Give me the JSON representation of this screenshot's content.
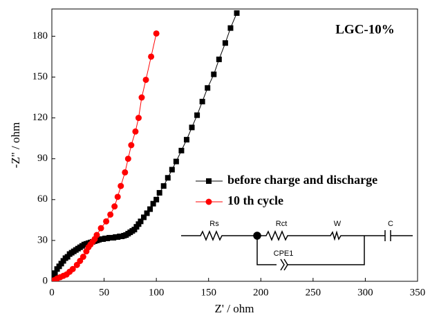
{
  "chart_data": {
    "type": "scatter",
    "annotation": "LGC-10%",
    "xlabel": "Z' / ohm",
    "ylabel": "-Z\" / ohm",
    "xlim": [
      0,
      350
    ],
    "ylim": [
      0,
      200
    ],
    "xticks": [
      0,
      50,
      100,
      150,
      200,
      250,
      300,
      350
    ],
    "yticks": [
      0,
      30,
      60,
      90,
      120,
      150,
      180
    ],
    "legend": "center-right",
    "circuit_labels": [
      "Rs",
      "Rct",
      "W",
      "C",
      "CPE1"
    ],
    "series": [
      {
        "name": "before charge and discharge",
        "color": "#000000",
        "marker": "square",
        "x": [
          1,
          2,
          3,
          5,
          7,
          9,
          11,
          13,
          15,
          17,
          19,
          21,
          23,
          25,
          27,
          29,
          31,
          33,
          35,
          37,
          39,
          41,
          43,
          45,
          47,
          49,
          51,
          53,
          55,
          57,
          59,
          61,
          63,
          65,
          67,
          69,
          71,
          73,
          75,
          77,
          79,
          81,
          83,
          85,
          88,
          91,
          94,
          97,
          100,
          103,
          107,
          111,
          115,
          119,
          124,
          129,
          134,
          139,
          144,
          149,
          155,
          160,
          166,
          171,
          177
        ],
        "values": [
          2,
          4,
          6,
          9,
          11,
          13,
          15,
          17,
          18,
          20,
          21,
          22,
          23,
          24,
          25,
          26,
          27,
          27.5,
          28,
          28.5,
          29,
          29.5,
          30,
          30.5,
          31,
          31,
          31.5,
          31.5,
          32,
          32,
          32,
          32.5,
          32.5,
          33,
          33,
          33.5,
          34,
          35,
          36,
          37,
          38,
          40,
          42,
          44,
          47,
          50,
          53,
          57,
          60,
          65,
          70,
          76,
          82,
          88,
          96,
          104,
          113,
          122,
          132,
          142,
          152,
          163,
          175,
          186,
          197
        ]
      },
      {
        "name": "10 th cycle",
        "color": "#ff0000",
        "marker": "circle",
        "x": [
          1,
          3,
          5,
          8,
          11,
          14,
          17,
          20,
          24,
          27,
          30,
          33,
          35,
          37,
          39,
          41,
          43,
          47,
          52,
          56,
          60,
          63,
          66,
          70,
          73,
          76,
          80,
          83,
          86,
          90,
          95,
          100
        ],
        "values": [
          0.5,
          1,
          2,
          3,
          4,
          5,
          7,
          9,
          12,
          15,
          18,
          22,
          25,
          27,
          29,
          31,
          34,
          39,
          44,
          49,
          55,
          62,
          70,
          80,
          90,
          100,
          110,
          120,
          135,
          148,
          165,
          182
        ]
      }
    ]
  }
}
